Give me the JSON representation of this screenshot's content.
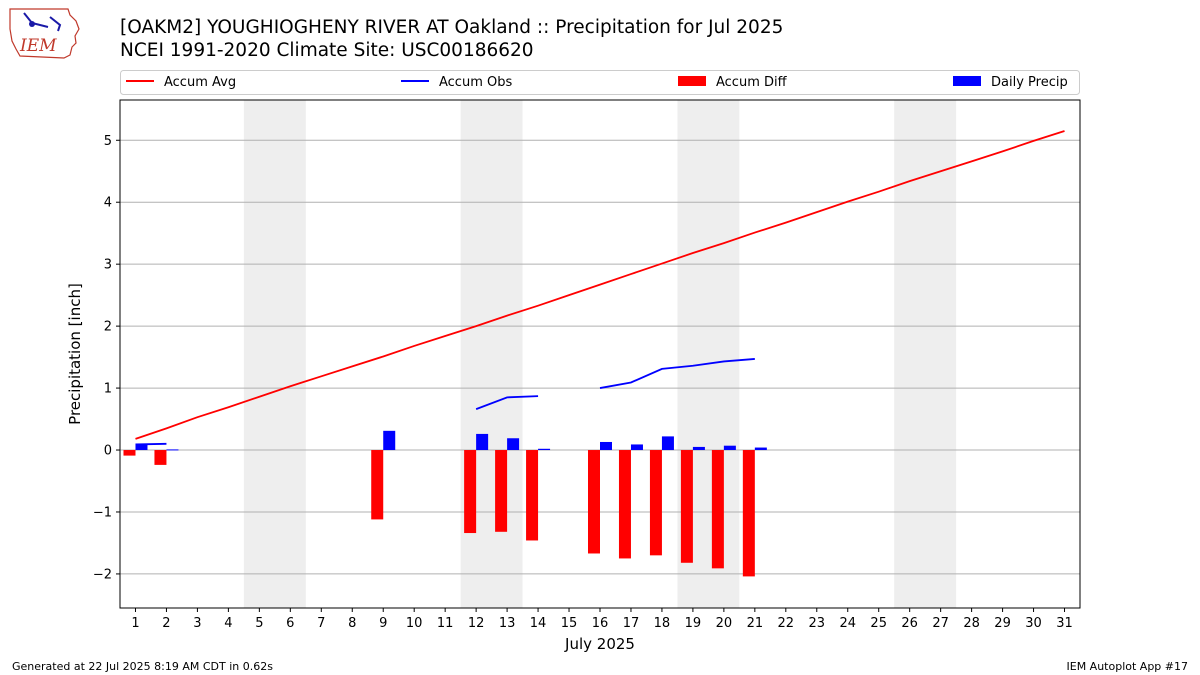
{
  "header": {
    "title_line1": "[OAKM2] YOUGHIOGHENY RIVER  AT Oakland :: Precipitation for Jul 2025",
    "title_line2": "NCEI 1991-2020 Climate Site: USC00186620"
  },
  "logo": {
    "text": "IEM",
    "icon": "iowa-state-outline-logo",
    "color": "#c0392b"
  },
  "footer": {
    "left": "Generated at 22 Jul 2025 8:19 AM CDT in 0.62s",
    "right": "IEM Autoplot App #17"
  },
  "chart_data": {
    "type": "bar",
    "xlabel": "July 2025",
    "ylabel": "Precipitation [inch]",
    "xlim": [
      0.5,
      31.5
    ],
    "ylim": [
      -2.55,
      5.65
    ],
    "x_ticks": [
      1,
      2,
      3,
      4,
      5,
      6,
      7,
      8,
      9,
      10,
      11,
      12,
      13,
      14,
      15,
      16,
      17,
      18,
      19,
      20,
      21,
      22,
      23,
      24,
      25,
      26,
      27,
      28,
      29,
      30,
      31
    ],
    "y_ticks": [
      -2,
      -1,
      0,
      1,
      2,
      3,
      4,
      5
    ],
    "y_tick_labels": [
      "−2",
      "−1",
      "0",
      "1",
      "2",
      "3",
      "4",
      "5"
    ],
    "grid": "horizontal",
    "weekend_shading": [
      [
        4.5,
        6.5
      ],
      [
        11.5,
        13.5
      ],
      [
        18.5,
        20.5
      ],
      [
        25.5,
        27.5
      ]
    ],
    "weekend_color": "#eeeeee",
    "legend": {
      "placement": "top",
      "entries": [
        {
          "label": "Accum Avg",
          "kind": "line",
          "color": "#ff0000"
        },
        {
          "label": "Accum Obs",
          "kind": "line",
          "color": "#0000ff"
        },
        {
          "label": "Accum Diff",
          "kind": "bar",
          "color": "#ff0000"
        },
        {
          "label": "Daily Precip",
          "kind": "bar",
          "color": "#0000ff"
        }
      ]
    },
    "series": [
      {
        "name": "Accum Avg",
        "kind": "line",
        "color": "#ff0000",
        "x": [
          1,
          2,
          3,
          4,
          5,
          6,
          7,
          8,
          9,
          10,
          11,
          12,
          13,
          14,
          15,
          16,
          17,
          18,
          19,
          20,
          21,
          22,
          23,
          24,
          25,
          26,
          27,
          28,
          29,
          30,
          31
        ],
        "values": [
          0.18,
          0.35,
          0.53,
          0.69,
          0.86,
          1.03,
          1.19,
          1.35,
          1.51,
          1.68,
          1.84,
          2.0,
          2.17,
          2.33,
          2.5,
          2.67,
          2.84,
          3.01,
          3.18,
          3.34,
          3.51,
          3.67,
          3.84,
          4.01,
          4.17,
          4.34,
          4.5,
          4.66,
          4.82,
          4.99,
          5.15
        ]
      },
      {
        "name": "Accum Obs",
        "kind": "line",
        "color": "#0000ff",
        "segments": [
          {
            "x": [
              1,
              2
            ],
            "values": [
              0.09,
              0.1
            ]
          },
          {
            "x": [
              12,
              13,
              14
            ],
            "values": [
              0.66,
              0.85,
              0.87
            ]
          },
          {
            "x": [
              16,
              17,
              18,
              19,
              20,
              21
            ],
            "values": [
              1.0,
              1.09,
              1.31,
              1.36,
              1.43,
              1.47
            ]
          }
        ]
      },
      {
        "name": "Accum Diff",
        "kind": "bar",
        "color": "#ff0000",
        "x": [
          1,
          2,
          9,
          12,
          13,
          14,
          16,
          17,
          18,
          19,
          20,
          21
        ],
        "values": [
          -0.09,
          -0.24,
          -1.12,
          -1.34,
          -1.32,
          -1.46,
          -1.67,
          -1.75,
          -1.7,
          -1.82,
          -1.91,
          -2.04
        ]
      },
      {
        "name": "Daily Precip",
        "kind": "bar",
        "color": "#0000ff",
        "x": [
          1,
          2,
          9,
          12,
          13,
          14,
          16,
          17,
          18,
          19,
          20,
          21
        ],
        "values": [
          0.09,
          0.01,
          0.31,
          0.26,
          0.19,
          0.02,
          0.13,
          0.09,
          0.22,
          0.05,
          0.07,
          0.04
        ]
      }
    ]
  }
}
